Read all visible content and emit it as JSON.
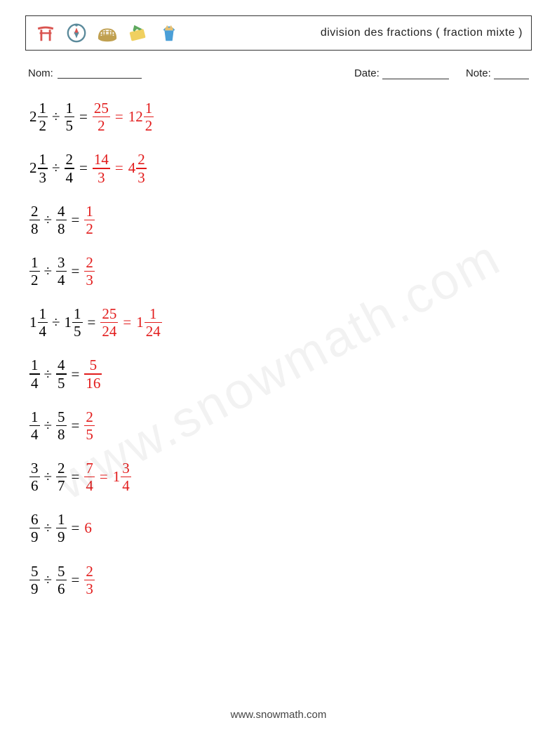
{
  "header": {
    "title": "division des fractions ( fraction mixte )",
    "icons": [
      {
        "name": "torii-gate-icon",
        "color": "#d9534f"
      },
      {
        "name": "compass-icon",
        "color": "#5b8a9b"
      },
      {
        "name": "colosseum-icon",
        "color": "#c0a050"
      },
      {
        "name": "plane-ticket-icon",
        "color": "#5fa95f"
      },
      {
        "name": "sandcastle-bucket-icon",
        "color": "#4a9fd8"
      }
    ]
  },
  "meta": {
    "name_label": "Nom:",
    "name_blank_width": 120,
    "date_label": "Date:",
    "date_blank_width": 95,
    "note_label": "Note:",
    "note_blank_width": 50
  },
  "colors": {
    "text": "#000000",
    "answer": "#e21b1b",
    "background": "#ffffff",
    "border": "#333333"
  },
  "fontsizes": {
    "title": 16,
    "meta": 15,
    "problem": 21,
    "footer": 15
  },
  "problems": [
    {
      "left": {
        "whole": "2",
        "num": "1",
        "den": "2"
      },
      "op": "÷",
      "right": {
        "whole": "",
        "num": "1",
        "den": "5"
      },
      "answer_steps": [
        {
          "whole": "",
          "num": "25",
          "den": "2"
        },
        {
          "whole": "12",
          "num": "1",
          "den": "2"
        }
      ]
    },
    {
      "left": {
        "whole": "2",
        "num": "1",
        "den": "3"
      },
      "op": "÷",
      "right": {
        "whole": "",
        "num": "2",
        "den": "4"
      },
      "answer_steps": [
        {
          "whole": "",
          "num": "14",
          "den": "3"
        },
        {
          "whole": "4",
          "num": "2",
          "den": "3"
        }
      ]
    },
    {
      "left": {
        "whole": "",
        "num": "2",
        "den": "8"
      },
      "op": "÷",
      "right": {
        "whole": "",
        "num": "4",
        "den": "8"
      },
      "answer_steps": [
        {
          "whole": "",
          "num": "1",
          "den": "2"
        }
      ]
    },
    {
      "left": {
        "whole": "",
        "num": "1",
        "den": "2"
      },
      "op": "÷",
      "right": {
        "whole": "",
        "num": "3",
        "den": "4"
      },
      "answer_steps": [
        {
          "whole": "",
          "num": "2",
          "den": "3"
        }
      ]
    },
    {
      "left": {
        "whole": "1",
        "num": "1",
        "den": "4"
      },
      "op": "÷",
      "right": {
        "whole": "1",
        "num": "1",
        "den": "5"
      },
      "answer_steps": [
        {
          "whole": "",
          "num": "25",
          "den": "24"
        },
        {
          "whole": "1",
          "num": "1",
          "den": "24"
        }
      ]
    },
    {
      "left": {
        "whole": "",
        "num": "1",
        "den": "4"
      },
      "op": "÷",
      "right": {
        "whole": "",
        "num": "4",
        "den": "5"
      },
      "answer_steps": [
        {
          "whole": "",
          "num": "5",
          "den": "16"
        }
      ]
    },
    {
      "left": {
        "whole": "",
        "num": "1",
        "den": "4"
      },
      "op": "÷",
      "right": {
        "whole": "",
        "num": "5",
        "den": "8"
      },
      "answer_steps": [
        {
          "whole": "",
          "num": "2",
          "den": "5"
        }
      ]
    },
    {
      "left": {
        "whole": "",
        "num": "3",
        "den": "6"
      },
      "op": "÷",
      "right": {
        "whole": "",
        "num": "2",
        "den": "7"
      },
      "answer_steps": [
        {
          "whole": "",
          "num": "7",
          "den": "4"
        },
        {
          "whole": "1",
          "num": "3",
          "den": "4"
        }
      ]
    },
    {
      "left": {
        "whole": "",
        "num": "6",
        "den": "9"
      },
      "op": "÷",
      "right": {
        "whole": "",
        "num": "1",
        "den": "9"
      },
      "answer_steps": [
        {
          "whole": "6",
          "num": "",
          "den": ""
        }
      ]
    },
    {
      "left": {
        "whole": "",
        "num": "5",
        "den": "9"
      },
      "op": "÷",
      "right": {
        "whole": "",
        "num": "5",
        "den": "6"
      },
      "answer_steps": [
        {
          "whole": "",
          "num": "2",
          "den": "3"
        }
      ]
    }
  ],
  "watermark": "www.snowmath.com",
  "footer": "www.snowmath.com"
}
